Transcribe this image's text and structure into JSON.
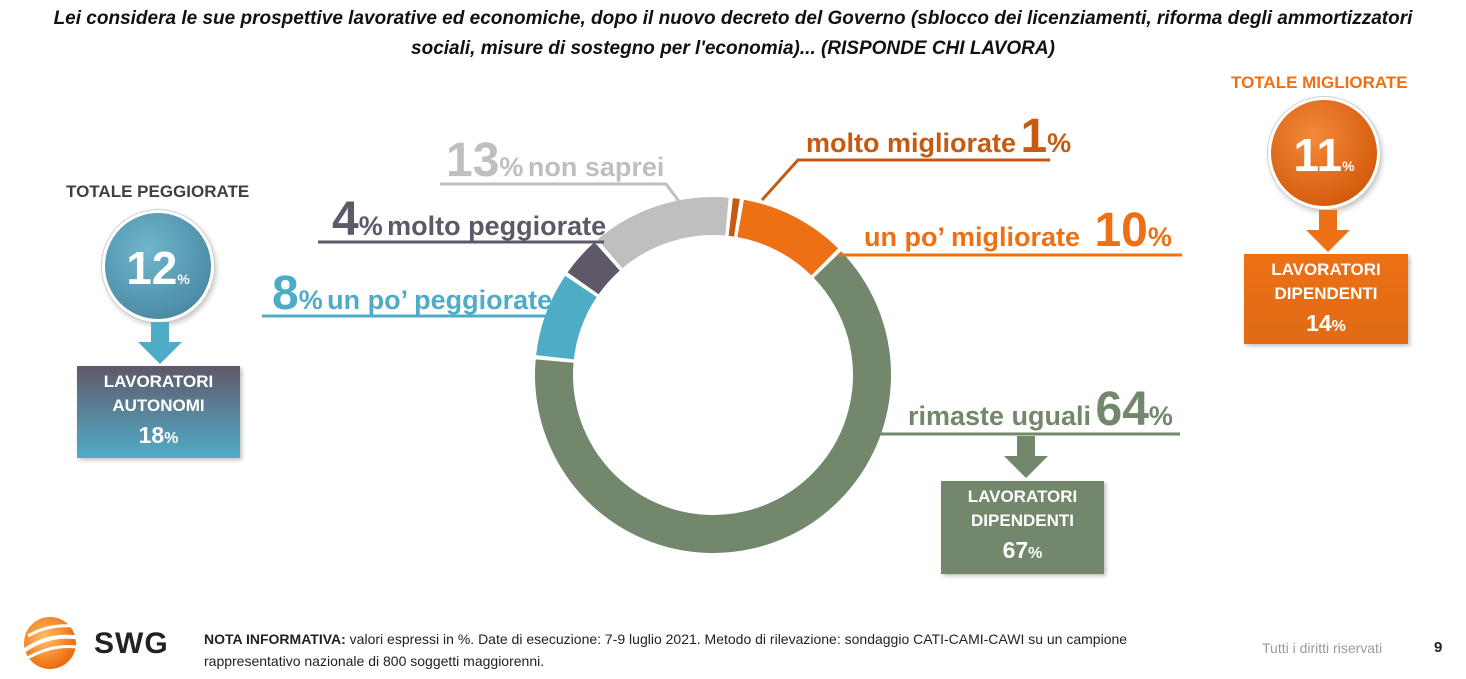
{
  "title": {
    "line1": "Lei considera le sue prospettive lavorative ed economiche, dopo il nuovo decreto del Governo (sblocco dei licenziamenti, riforma degli ammortizzatori",
    "line2": "sociali, misure di sostegno per l'economia)... (RISPONDE CHI LAVORA)"
  },
  "chart_data": {
    "type": "pie",
    "variant": "donut",
    "unit": "%",
    "slices": [
      {
        "label": "molto migliorate",
        "value": 1,
        "color": "#C55A11"
      },
      {
        "label": "un po’ migliorate",
        "value": 10,
        "color": "#ED7014"
      },
      {
        "label": "rimaste uguali",
        "value": 64,
        "color": "#72876B"
      },
      {
        "label": "un po’ peggiorate",
        "value": 8,
        "color": "#4FACC6"
      },
      {
        "label": "molto peggiorate",
        "value": 4,
        "color": "#5F5868"
      },
      {
        "label": "non saprei",
        "value": 13,
        "color": "#BFBFBF"
      }
    ],
    "labels_text": {
      "molto_migliorate": {
        "text": "molto migliorate",
        "value": "1",
        "pct": "%"
      },
      "un_po_migliorate": {
        "text": "un po’ migliorate",
        "value": "10",
        "pct": "%"
      },
      "rimaste_uguali": {
        "text": "rimaste uguali",
        "value": "64",
        "pct": "%"
      },
      "un_po_peggiorate": {
        "text": "un po’ peggiorate",
        "value": "8",
        "pct": "%"
      },
      "molto_peggiorate": {
        "text": "molto peggiorate",
        "value": "4",
        "pct": "%"
      },
      "non_saprei": {
        "text": "non saprei",
        "value": "13",
        "pct": "%"
      }
    }
  },
  "totals": {
    "peggiorate": {
      "title": "TOTALE PEGGIORATE",
      "value": "12",
      "pct": "%",
      "color": "#4FACC6",
      "box": {
        "line1": "LAVORATORI",
        "line2": "AUTONOMI",
        "value": "18",
        "pct": "%"
      }
    },
    "migliorate": {
      "title": "TOTALE MIGLIORATE",
      "value": "11",
      "pct": "%",
      "color": "#ED7014",
      "box": {
        "line1": "LAVORATORI",
        "line2": "DIPENDENTI",
        "value": "14",
        "pct": "%"
      }
    },
    "uguali": {
      "box": {
        "line1": "LAVORATORI",
        "line2": "DIPENDENTI",
        "value": "67",
        "pct": "%"
      }
    }
  },
  "footer": {
    "note_label": "NOTA INFORMATIVA:",
    "note_text": " valori espressi in %. Date di esecuzione: 7-9 luglio 2021. Metodo di rilevazione: sondaggio CATI-CAMI-CAWI su un campione rappresentativo nazionale di 800 soggetti maggiorenni.",
    "rights": "Tutti i diritti riservati",
    "page": "9",
    "logo": "SWG"
  }
}
